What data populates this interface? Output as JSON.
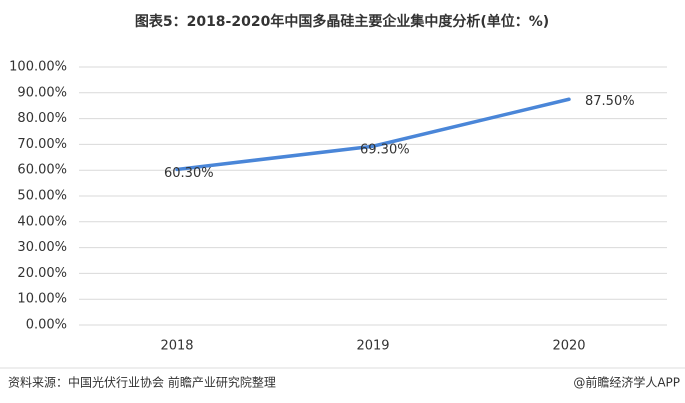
{
  "chart_data": {
    "type": "line",
    "title": "图表5：2018-2020年中国多晶硅主要企业集中度分析(单位：%)",
    "categories": [
      "2018",
      "2019",
      "2020"
    ],
    "values": [
      60.3,
      69.3,
      87.5
    ],
    "value_labels": [
      "60.30%",
      "69.30%",
      "87.50%"
    ],
    "color": "#4a86d8",
    "ylim": [
      0,
      100
    ],
    "yticks": [
      {
        "value": 0,
        "label": "0.00%"
      },
      {
        "value": 10,
        "label": "10.00%"
      },
      {
        "value": 20,
        "label": "20.00%"
      },
      {
        "value": 30,
        "label": "30.00%"
      },
      {
        "value": 40,
        "label": "40.00%"
      },
      {
        "value": 50,
        "label": "50.00%"
      },
      {
        "value": 60,
        "label": "60.00%"
      },
      {
        "value": 70,
        "label": "70.00%"
      },
      {
        "value": 80,
        "label": "80.00%"
      },
      {
        "value": 90,
        "label": "90.00%"
      },
      {
        "value": 100,
        "label": "100.00%"
      }
    ],
    "grid": true
  },
  "footer": {
    "source": "资料来源：中国光伏行业协会 前瞻产业研究院整理",
    "brand": "@前瞻经济学人APP"
  }
}
